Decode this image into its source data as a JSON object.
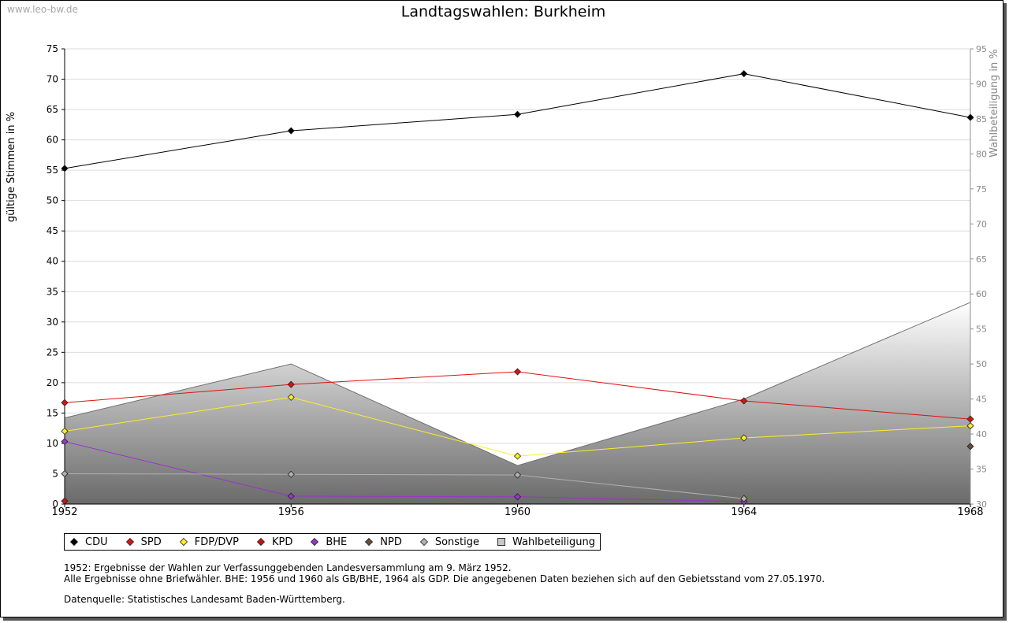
{
  "watermark": "www.leo-bw.de",
  "chart_data": {
    "type": "line",
    "title": "Landtagswahlen: Burkheim",
    "ylabel": "gültige Stimmen in %",
    "y2label": "Wahlbeteiligung in %",
    "xlabel": "",
    "x": [
      1952,
      1956,
      1960,
      1964,
      1968
    ],
    "x_ticks": [
      "1952",
      "1956",
      "1960",
      "1964",
      "1968"
    ],
    "ylim": [
      0,
      75
    ],
    "y_ticks": [
      0,
      5,
      10,
      15,
      20,
      25,
      30,
      35,
      40,
      45,
      50,
      55,
      60,
      65,
      70,
      75
    ],
    "y2lim": [
      30,
      95
    ],
    "y2_ticks": [
      30,
      35,
      40,
      45,
      50,
      55,
      60,
      65,
      70,
      75,
      80,
      85,
      90,
      95
    ],
    "grid": true,
    "series": [
      {
        "name": "CDU",
        "color": "#000000",
        "values": [
          55.3,
          61.5,
          64.2,
          70.9,
          63.7
        ]
      },
      {
        "name": "SPD",
        "color": "#dd1111",
        "values": [
          16.7,
          19.7,
          21.8,
          17.0,
          14.0
        ]
      },
      {
        "name": "FDP/DVP",
        "color": "#ffee22",
        "values": [
          12.0,
          17.6,
          7.9,
          10.9,
          12.9
        ]
      },
      {
        "name": "KPD",
        "color": "#cc1111",
        "values": [
          0.5,
          null,
          null,
          null,
          null
        ]
      },
      {
        "name": "BHE",
        "color": "#9933cc",
        "values": [
          10.3,
          1.3,
          1.2,
          0.4,
          null
        ]
      },
      {
        "name": "NPD",
        "color": "#6b4a3a",
        "values": [
          null,
          null,
          null,
          null,
          9.5
        ]
      },
      {
        "name": "Sonstige",
        "color": "#b0b0b0",
        "values": [
          5.0,
          4.9,
          4.8,
          0.9,
          null
        ]
      }
    ],
    "area_series": {
      "name": "Wahlbeteiligung",
      "axis": "y2",
      "values": [
        42.3,
        50.0,
        35.5,
        45.0,
        58.8
      ]
    }
  },
  "legend": [
    {
      "label": "CDU",
      "color": "#000000",
      "shape": "diamond"
    },
    {
      "label": "SPD",
      "color": "#dd1111",
      "shape": "diamond"
    },
    {
      "label": "FDP/DVP",
      "color": "#ffee22",
      "shape": "diamond"
    },
    {
      "label": "KPD",
      "color": "#cc1111",
      "shape": "diamond"
    },
    {
      "label": "BHE",
      "color": "#9933cc",
      "shape": "diamond"
    },
    {
      "label": "NPD",
      "color": "#6b4a3a",
      "shape": "diamond"
    },
    {
      "label": "Sonstige",
      "color": "#b0b0b0",
      "shape": "diamond"
    },
    {
      "label": "Wahlbeteiligung",
      "color": "#c8c8c8",
      "shape": "square"
    }
  ],
  "notes": {
    "line1": "1952: Ergebnisse der Wahlen zur Verfassunggebenden Landesversammlung am 9. März 1952.",
    "line2": "Alle Ergebnisse ohne Briefwähler. BHE: 1956 und 1960 als GB/BHE, 1964 als GDP. Die angegebenen Daten beziehen sich auf den Gebietsstand vom 27.05.1970.",
    "source": "Datenquelle: Statistisches Landesamt Baden-Württemberg."
  }
}
